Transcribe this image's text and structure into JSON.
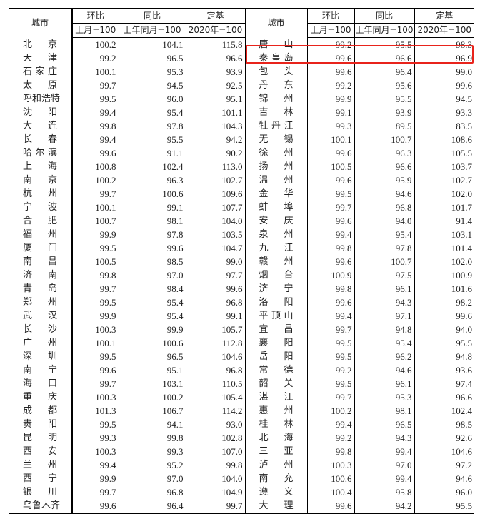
{
  "header": {
    "city": "城市",
    "mom": "环比",
    "mom_base": "上月=100",
    "yoy": "同比",
    "yoy_base": "上年同月=100",
    "fixed": "定基",
    "fixed_base": "2020年=100"
  },
  "highlight_color": "#e8231b",
  "highlighted_city": "秦皇岛",
  "left": [
    [
      "北京",
      "100.2",
      "104.1",
      "115.8"
    ],
    [
      "天津",
      "99.2",
      "96.5",
      "96.6"
    ],
    [
      "石家庄",
      "100.1",
      "95.3",
      "93.9"
    ],
    [
      "太原",
      "99.7",
      "94.5",
      "92.5"
    ],
    [
      "呼和浩特",
      "99.5",
      "96.0",
      "95.1"
    ],
    [
      "沈阳",
      "99.4",
      "95.4",
      "101.1"
    ],
    [
      "大连",
      "99.8",
      "97.8",
      "104.3"
    ],
    [
      "长春",
      "99.4",
      "95.5",
      "94.2"
    ],
    [
      "哈尔滨",
      "99.6",
      "91.1",
      "90.2"
    ],
    [
      "上海",
      "100.8",
      "102.4",
      "113.0"
    ],
    [
      "南京",
      "100.2",
      "96.3",
      "102.7"
    ],
    [
      "杭州",
      "99.7",
      "100.6",
      "109.6"
    ],
    [
      "宁波",
      "100.1",
      "99.1",
      "107.7"
    ],
    [
      "合肥",
      "100.7",
      "98.1",
      "104.0"
    ],
    [
      "福州",
      "99.9",
      "97.8",
      "103.5"
    ],
    [
      "厦门",
      "99.5",
      "99.6",
      "104.7"
    ],
    [
      "南昌",
      "100.5",
      "98.5",
      "99.0"
    ],
    [
      "济南",
      "99.8",
      "97.0",
      "97.7"
    ],
    [
      "青岛",
      "99.7",
      "98.4",
      "99.6"
    ],
    [
      "郑州",
      "99.5",
      "95.4",
      "96.8"
    ],
    [
      "武汉",
      "99.9",
      "95.4",
      "99.1"
    ],
    [
      "长沙",
      "100.3",
      "99.9",
      "105.7"
    ],
    [
      "广州",
      "100.1",
      "100.6",
      "112.8"
    ],
    [
      "深圳",
      "99.5",
      "96.5",
      "104.6"
    ],
    [
      "南宁",
      "99.6",
      "95.1",
      "96.8"
    ],
    [
      "海口",
      "99.7",
      "103.1",
      "110.5"
    ],
    [
      "重庆",
      "100.3",
      "100.2",
      "105.4"
    ],
    [
      "成都",
      "101.3",
      "106.7",
      "114.2"
    ],
    [
      "贵阳",
      "99.5",
      "94.1",
      "93.0"
    ],
    [
      "昆明",
      "99.3",
      "99.8",
      "102.8"
    ],
    [
      "西安",
      "100.3",
      "99.3",
      "107.0"
    ],
    [
      "兰州",
      "99.4",
      "95.2",
      "99.8"
    ],
    [
      "西宁",
      "99.9",
      "97.0",
      "104.0"
    ],
    [
      "银川",
      "99.7",
      "96.8",
      "104.9"
    ],
    [
      "乌鲁木齐",
      "99.6",
      "96.4",
      "99.7"
    ]
  ],
  "right": [
    [
      "唐山",
      "99.2",
      "95.5",
      "98.3"
    ],
    [
      "秦皇岛",
      "99.6",
      "96.6",
      "96.9"
    ],
    [
      "包头",
      "99.6",
      "96.4",
      "99.0"
    ],
    [
      "丹东",
      "99.2",
      "95.6",
      "99.6"
    ],
    [
      "锦州",
      "99.9",
      "95.5",
      "94.5"
    ],
    [
      "吉林",
      "99.1",
      "93.9",
      "93.3"
    ],
    [
      "牡丹江",
      "99.3",
      "89.5",
      "83.5"
    ],
    [
      "无锡",
      "100.1",
      "100.7",
      "108.6"
    ],
    [
      "徐州",
      "99.6",
      "96.3",
      "105.5"
    ],
    [
      "扬州",
      "100.5",
      "96.6",
      "103.7"
    ],
    [
      "温州",
      "99.6",
      "95.9",
      "102.7"
    ],
    [
      "金华",
      "99.5",
      "94.6",
      "102.0"
    ],
    [
      "蚌埠",
      "99.7",
      "96.8",
      "101.7"
    ],
    [
      "安庆",
      "99.6",
      "94.0",
      "91.4"
    ],
    [
      "泉州",
      "99.4",
      "95.4",
      "103.1"
    ],
    [
      "九江",
      "99.8",
      "97.8",
      "101.4"
    ],
    [
      "赣州",
      "99.6",
      "100.7",
      "102.0"
    ],
    [
      "烟台",
      "100.9",
      "97.5",
      "100.9"
    ],
    [
      "济宁",
      "99.8",
      "96.1",
      "101.6"
    ],
    [
      "洛阳",
      "99.6",
      "94.3",
      "98.2"
    ],
    [
      "平顶山",
      "99.4",
      "97.1",
      "99.6"
    ],
    [
      "宜昌",
      "99.7",
      "94.8",
      "94.0"
    ],
    [
      "襄阳",
      "99.5",
      "95.4",
      "95.5"
    ],
    [
      "岳阳",
      "99.5",
      "96.2",
      "94.8"
    ],
    [
      "常德",
      "99.2",
      "94.6",
      "93.6"
    ],
    [
      "韶关",
      "99.5",
      "96.1",
      "97.4"
    ],
    [
      "湛江",
      "99.7",
      "95.3",
      "96.6"
    ],
    [
      "惠州",
      "100.2",
      "98.1",
      "102.4"
    ],
    [
      "桂林",
      "99.4",
      "96.5",
      "98.5"
    ],
    [
      "北海",
      "99.2",
      "94.3",
      "92.6"
    ],
    [
      "三亚",
      "99.8",
      "99.4",
      "104.6"
    ],
    [
      "泸州",
      "100.3",
      "97.0",
      "97.2"
    ],
    [
      "南充",
      "100.6",
      "99.4",
      "94.6"
    ],
    [
      "遵义",
      "100.4",
      "95.8",
      "96.0"
    ],
    [
      "大理",
      "99.6",
      "94.2",
      "95.5"
    ]
  ]
}
